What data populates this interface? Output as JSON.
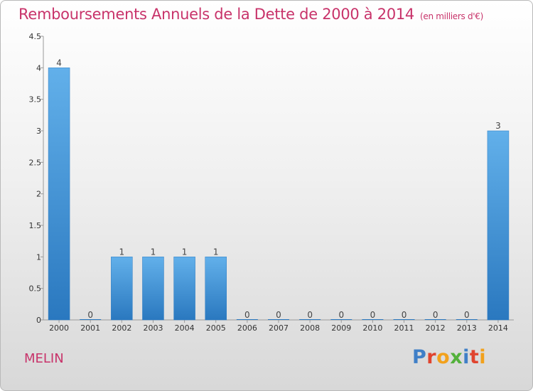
{
  "title": "Remboursements Annuels de la Dette de 2000 à 2014",
  "unit": "(en milliers d'€)",
  "commune": "MELIN",
  "logo": [
    {
      "ch": "P",
      "color": "#3f7fc7"
    },
    {
      "ch": "r",
      "color": "#e0442f"
    },
    {
      "ch": "o",
      "color": "#f2a11c"
    },
    {
      "ch": "x",
      "color": "#53b13b"
    },
    {
      "ch": "i",
      "color": "#3f7fc7"
    },
    {
      "ch": "t",
      "color": "#e0442f"
    },
    {
      "ch": "i",
      "color": "#f2a11c"
    }
  ],
  "chart_data": {
    "type": "bar",
    "categories": [
      "2000",
      "2001",
      "2002",
      "2003",
      "2004",
      "2005",
      "2006",
      "2007",
      "2008",
      "2009",
      "2010",
      "2011",
      "2012",
      "2013",
      "2014"
    ],
    "values": [
      4,
      0,
      1,
      1,
      1,
      1,
      0,
      0,
      0,
      0,
      0,
      0,
      0,
      0,
      3
    ],
    "data_labels": [
      "4",
      "0",
      "1",
      "1",
      "1",
      "1",
      "0",
      "0",
      "0",
      "0",
      "0",
      "0",
      "0",
      "0",
      "3"
    ],
    "yticks": [
      "0",
      "0.5",
      "1",
      "1.5",
      "2",
      "2.5",
      "3",
      "3.5",
      "4",
      "4.5"
    ],
    "ylim": [
      0,
      4.5
    ],
    "bar_color": "#3a8fd6",
    "grid": false,
    "legend": "none"
  }
}
